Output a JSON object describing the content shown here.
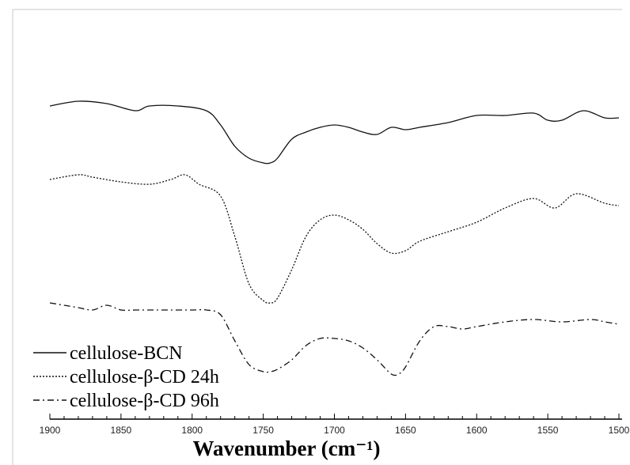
{
  "chart_data": {
    "type": "line",
    "xlabel": "Wavenumber (cm⁻¹)",
    "ylabel": "",
    "xlim": [
      1900,
      1500
    ],
    "x_reversed": true,
    "y_ticks_shown": false,
    "grid": false,
    "legend_position": "bottom-left",
    "x_ticks": [
      1900,
      1850,
      1800,
      1750,
      1700,
      1650,
      1600,
      1550,
      1500
    ],
    "x_tick_labels": [
      "1900",
      "1850",
      "1800",
      "1750",
      "1700",
      "1650",
      "1600",
      "1550",
      "1500"
    ],
    "series": [
      {
        "name": "cellulose-BCN",
        "dash": "solid",
        "x": [
          1900,
          1880,
          1860,
          1840,
          1830,
          1810,
          1790,
          1780,
          1770,
          1760,
          1750,
          1745,
          1740,
          1730,
          1720,
          1710,
          1700,
          1690,
          1680,
          1670,
          1660,
          1650,
          1640,
          1620,
          1600,
          1580,
          1560,
          1550,
          1540,
          1525,
          1510,
          1500
        ],
        "y": [
          0.95,
          0.97,
          0.96,
          0.93,
          0.95,
          0.95,
          0.93,
          0.87,
          0.78,
          0.73,
          0.71,
          0.71,
          0.73,
          0.81,
          0.84,
          0.86,
          0.87,
          0.86,
          0.84,
          0.83,
          0.86,
          0.85,
          0.86,
          0.88,
          0.91,
          0.91,
          0.92,
          0.89,
          0.89,
          0.93,
          0.9,
          0.9
        ]
      },
      {
        "name": "cellulose-β-CD 24h",
        "dash": "dotted",
        "x": [
          1900,
          1880,
          1870,
          1850,
          1830,
          1815,
          1805,
          1795,
          1780,
          1770,
          1760,
          1750,
          1745,
          1740,
          1730,
          1720,
          1710,
          1700,
          1690,
          1680,
          1670,
          1660,
          1650,
          1640,
          1620,
          1600,
          1580,
          1560,
          1545,
          1530,
          1510,
          1500
        ],
        "y": [
          0.64,
          0.66,
          0.65,
          0.63,
          0.62,
          0.64,
          0.66,
          0.62,
          0.57,
          0.4,
          0.2,
          0.13,
          0.12,
          0.14,
          0.26,
          0.4,
          0.47,
          0.49,
          0.47,
          0.43,
          0.37,
          0.33,
          0.34,
          0.38,
          0.42,
          0.46,
          0.52,
          0.56,
          0.52,
          0.58,
          0.54,
          0.53
        ]
      },
      {
        "name": "cellulose-β-CD 96h",
        "dash": "dash-dot",
        "x": [
          1900,
          1890,
          1880,
          1870,
          1860,
          1850,
          1840,
          1830,
          1820,
          1800,
          1790,
          1780,
          1770,
          1760,
          1750,
          1745,
          1740,
          1730,
          1720,
          1710,
          1700,
          1690,
          1680,
          1670,
          1660,
          1655,
          1650,
          1640,
          1630,
          1620,
          1610,
          1600,
          1580,
          1560,
          1540,
          1520,
          1510,
          1500
        ],
        "y": [
          0.12,
          0.11,
          0.1,
          0.09,
          0.11,
          0.09,
          0.09,
          0.09,
          0.09,
          0.09,
          0.09,
          0.07,
          -0.04,
          -0.14,
          -0.17,
          -0.17,
          -0.16,
          -0.12,
          -0.06,
          -0.03,
          -0.03,
          -0.04,
          -0.07,
          -0.12,
          -0.18,
          -0.18,
          -0.15,
          -0.04,
          0.02,
          0.02,
          0.01,
          0.02,
          0.04,
          0.05,
          0.04,
          0.05,
          0.04,
          0.03
        ]
      }
    ]
  }
}
